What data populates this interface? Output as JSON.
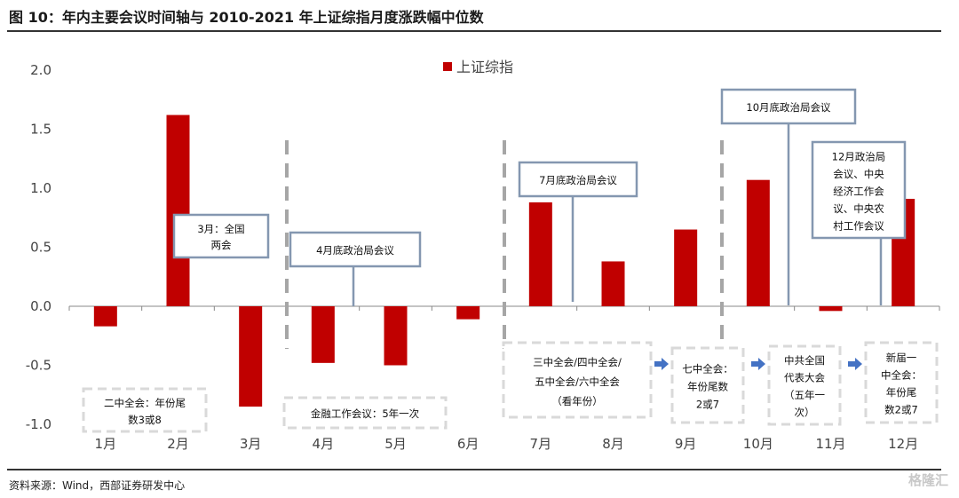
{
  "figure": {
    "title": "图 10：年内主要会议时间轴与 2010-2021 年上证综指月度涨跌幅中位数",
    "source": "资料来源：Wind，西部证券研发中心",
    "watermark": "格隆汇"
  },
  "colors": {
    "bar": "#c00000",
    "solid_box": "#8497b0",
    "dashed_box": "#d9d9d9",
    "arrow": "#4472c4",
    "divider": "#a6a6a6"
  },
  "chart_data": {
    "type": "bar",
    "categories": [
      "1月",
      "2月",
      "3月",
      "4月",
      "5月",
      "6月",
      "7月",
      "8月",
      "9月",
      "10月",
      "11月",
      "12月"
    ],
    "series": [
      {
        "name": "上证综指",
        "values": [
          -0.17,
          1.62,
          -0.85,
          -0.48,
          -0.5,
          -0.11,
          0.88,
          0.38,
          0.65,
          1.07,
          -0.04,
          0.91
        ]
      }
    ],
    "ylim": [
      -1.0,
      2.0
    ],
    "yticks": [
      "2.0",
      "1.5",
      "1.0",
      "0.5",
      "0.0",
      "-0.5",
      "-1.0"
    ],
    "ytick_values": [
      2.0,
      1.5,
      1.0,
      0.5,
      0.0,
      -0.5,
      -1.0
    ],
    "legend_position": "top-center",
    "grid": false,
    "meetings": [
      {
        "name": "march-npc",
        "lines": [
          "3月：全国",
          "两会"
        ]
      },
      {
        "name": "april-politburo",
        "lines": [
          "4月底政治局会议"
        ]
      },
      {
        "name": "july-politburo",
        "lines": [
          "7月底政治局会议"
        ]
      },
      {
        "name": "october-politburo",
        "lines": [
          "10月底政治局会议"
        ]
      },
      {
        "name": "december-meetings",
        "lines": [
          "12月政治局",
          "会议、中央",
          "经济工作会",
          "议、中央农",
          "村工作会议"
        ]
      }
    ],
    "plenums": [
      {
        "name": "second-plenum",
        "lines": [
          "二中全会：年份尾",
          "数3或8"
        ]
      },
      {
        "name": "finance-work-meeting",
        "lines": [
          "金融工作会议：5年一次"
        ]
      },
      {
        "name": "third-fourth-fifth-sixth-plenum",
        "lines": [
          "三中全会/四中全会/",
          "五中全会/六中全会",
          "（看年份）"
        ]
      },
      {
        "name": "seventh-plenum",
        "lines": [
          "七中全会：",
          "年份尾数",
          "2或7"
        ]
      },
      {
        "name": "party-congress",
        "lines": [
          "中共全国",
          "代表大会",
          "（五年一",
          "次）"
        ]
      },
      {
        "name": "first-plenum",
        "lines": [
          "新届一",
          "中全会：",
          "年份尾",
          "数2或7"
        ]
      }
    ]
  }
}
